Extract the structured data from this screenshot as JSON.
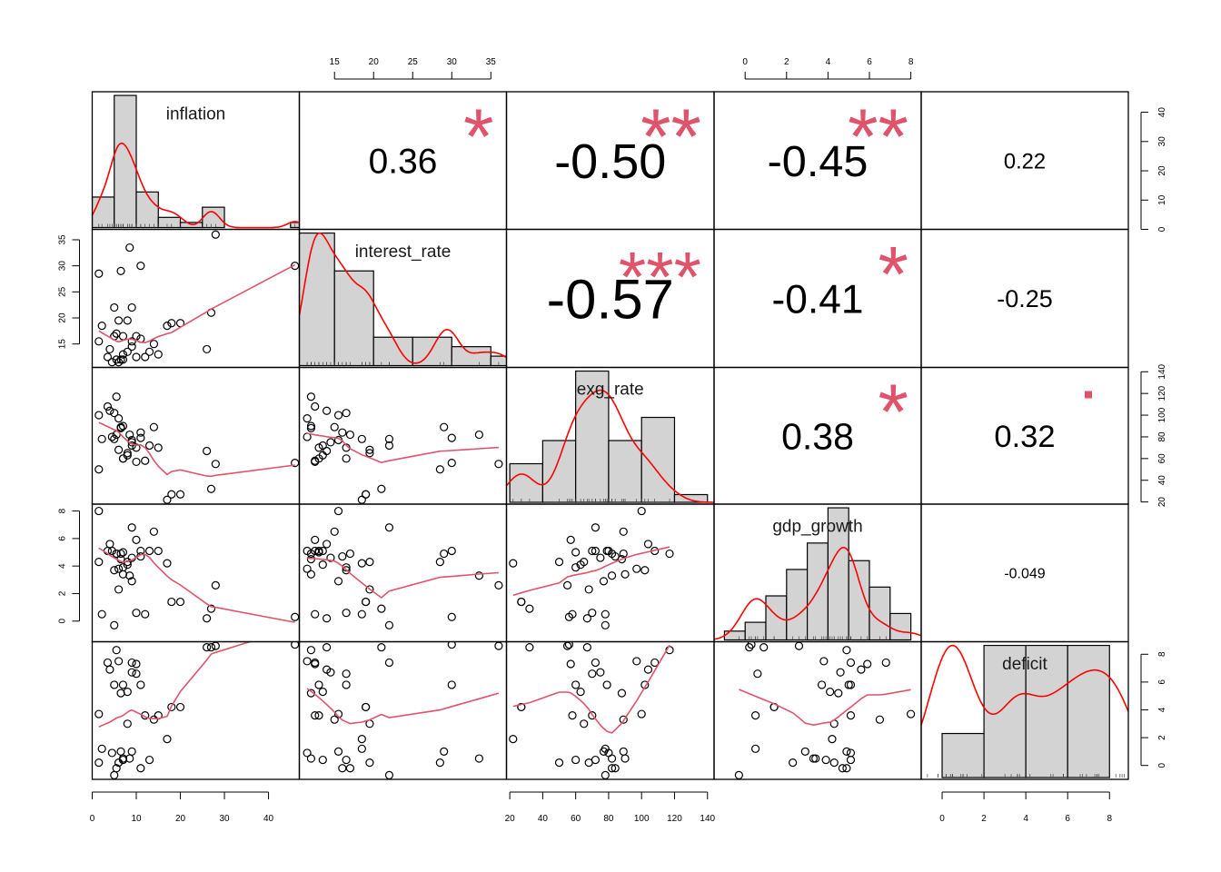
{
  "chart_data": {
    "type": "scatter-matrix",
    "variables": [
      "inflation",
      "interest_rate",
      "exg_rate",
      "gdp_growth",
      "deficit"
    ],
    "axes": {
      "inflation": {
        "range": [
          0,
          47
        ],
        "ticks": [
          0,
          10,
          20,
          30,
          40
        ]
      },
      "interest_rate": {
        "range": [
          10.5,
          37
        ],
        "ticks": [
          15,
          20,
          25,
          30,
          35
        ]
      },
      "exg_rate": {
        "range": [
          18,
          144
        ],
        "ticks": [
          20,
          40,
          60,
          80,
          100,
          120,
          140
        ]
      },
      "gdp_growth": {
        "range": [
          -1.5,
          8.5
        ],
        "ticks": [
          0,
          2,
          4,
          6,
          8
        ]
      },
      "deficit": {
        "range": [
          -1,
          8.9
        ],
        "ticks": [
          0,
          2,
          4,
          6,
          8
        ]
      }
    },
    "correlations": [
      {
        "pair": [
          "inflation",
          "interest_rate"
        ],
        "label": "0.36",
        "stars": "*"
      },
      {
        "pair": [
          "inflation",
          "exg_rate"
        ],
        "label": "-0.50",
        "stars": "**"
      },
      {
        "pair": [
          "inflation",
          "gdp_growth"
        ],
        "label": "-0.45",
        "stars": "**"
      },
      {
        "pair": [
          "inflation",
          "deficit"
        ],
        "label": "0.22",
        "stars": ""
      },
      {
        "pair": [
          "interest_rate",
          "exg_rate"
        ],
        "label": "-0.57",
        "stars": "***"
      },
      {
        "pair": [
          "interest_rate",
          "gdp_growth"
        ],
        "label": "-0.41",
        "stars": "*"
      },
      {
        "pair": [
          "interest_rate",
          "deficit"
        ],
        "label": "-0.25",
        "stars": ""
      },
      {
        "pair": [
          "exg_rate",
          "gdp_growth"
        ],
        "label": "0.38",
        "stars": "*"
      },
      {
        "pair": [
          "exg_rate",
          "deficit"
        ],
        "label": "0.32",
        "stars": "."
      },
      {
        "pair": [
          "gdp_growth",
          "deficit"
        ],
        "label": "-0.049",
        "stars": ""
      }
    ],
    "histograms": {
      "inflation": {
        "breaks": [
          0,
          5,
          10,
          15,
          20,
          25,
          30,
          35,
          40,
          45,
          50
        ],
        "counts": [
          6,
          26,
          7,
          2,
          1,
          4,
          0,
          0,
          0,
          1
        ]
      },
      "interest_rate": {
        "breaks": [
          10,
          15,
          20,
          25,
          30,
          35,
          40
        ],
        "counts": [
          14,
          10,
          3,
          3,
          2,
          1
        ]
      },
      "exg_rate": {
        "breaks": [
          20,
          40,
          60,
          80,
          100,
          120,
          140
        ],
        "counts": [
          5,
          8,
          17,
          8,
          11,
          1
        ]
      },
      "gdp_growth": {
        "breaks": [
          -1,
          0,
          1,
          2,
          3,
          4,
          5,
          6,
          7,
          8
        ],
        "counts": [
          1,
          2,
          5,
          8,
          11,
          15,
          9,
          6,
          3
        ]
      },
      "deficit": {
        "breaks": [
          0,
          2,
          4,
          6,
          8,
          10
        ],
        "counts": [
          3,
          9,
          9,
          9,
          0
        ]
      }
    },
    "data": {
      "inflation": [
        1.5,
        2.2,
        1.5,
        4,
        3.5,
        5.5,
        6,
        6.5,
        7,
        8,
        8.5,
        9,
        9,
        10,
        11,
        5,
        6,
        7,
        4.5,
        5.5,
        6.5,
        8,
        10,
        12,
        13,
        14,
        15,
        17,
        18,
        20,
        26,
        27,
        28,
        46,
        5,
        7,
        9,
        11
      ],
      "interest_rate": [
        28.5,
        18.5,
        15.5,
        14,
        12.5,
        12,
        11.5,
        12,
        13,
        13.5,
        33.5,
        15.5,
        22,
        12.5,
        30,
        22,
        19.5,
        16.5,
        11.5,
        17,
        29,
        19.5,
        16.5,
        12.5,
        13.5,
        15,
        13,
        18.5,
        19,
        19,
        14,
        21,
        36,
        30,
        16.5,
        12,
        14.5,
        16
      ],
      "exg_rate": [
        50,
        78,
        100,
        104,
        108,
        117,
        97,
        88,
        60,
        63,
        82,
        77,
        72,
        57,
        79,
        78,
        68,
        60,
        80,
        82,
        89,
        65,
        70,
        58,
        72,
        89,
        70,
        22,
        27,
        27,
        67,
        32,
        55,
        56,
        102,
        90,
        75,
        84
      ],
      "gdp_growth": [
        4.3,
        0.5,
        8,
        5.6,
        5.1,
        4.9,
        3.8,
        4.5,
        5,
        4.1,
        3.3,
        2.9,
        6.8,
        5.9,
        5.1,
        -0.3,
        2.3,
        3.9,
        5.1,
        4.9,
        4.9,
        4.3,
        0.6,
        0.5,
        5.1,
        6.5,
        5.1,
        4.2,
        1.4,
        1.4,
        0.2,
        0.9,
        2.6,
        0.3,
        3.7,
        3.4,
        4.6,
        4.7
      ],
      "deficit": [
        0.2,
        1.2,
        3.7,
        6.9,
        7.4,
        8.3,
        7.5,
        5.2,
        5.8,
        5.3,
        0.5,
        1,
        7.4,
        7.3,
        5.8,
        -0.7,
        0.2,
        0.4,
        0.9,
        -0.2,
        1,
        3,
        6.6,
        3.6,
        0.4,
        3.3,
        3.6,
        1.9,
        4.2,
        4.2,
        8.5,
        8.5,
        8.6,
        8.7,
        5.8,
        0.5,
        6.7,
        -0.2
      ]
    },
    "density_bandwidth": {
      "inflation": 1.7,
      "interest_rate": 1.4,
      "exg_rate": 8,
      "gdp_growth": 0.55,
      "deficit": 0.9
    }
  }
}
